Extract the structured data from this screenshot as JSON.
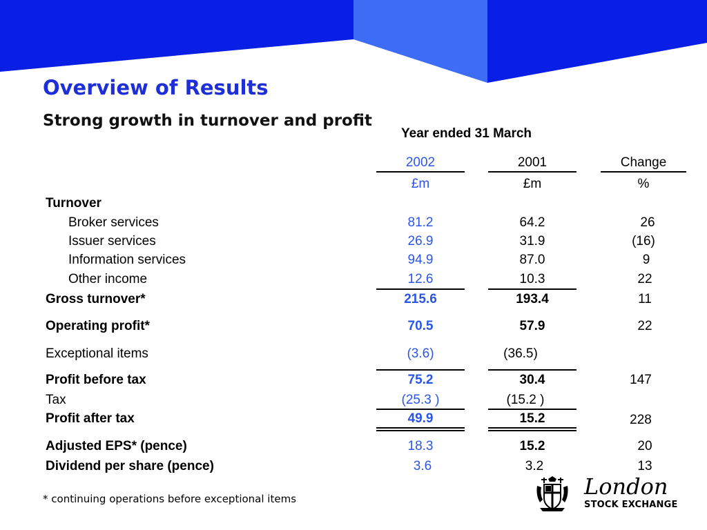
{
  "slide": {
    "title": "Overview of Results",
    "subtitle": "Strong growth in turnover and profit",
    "period": "Year ended 31 March",
    "footnote": "* continuing operations before exceptional items"
  },
  "colors": {
    "banner_dark": "#0a1fe6",
    "banner_light": "#3d6cf5",
    "title": "#1f2fd6",
    "highlight_column": "#2a55e6"
  },
  "table": {
    "columns": [
      {
        "year": "2002",
        "unit": "£m"
      },
      {
        "year": "2001",
        "unit": "£m"
      },
      {
        "year": "Change",
        "unit": "%"
      }
    ],
    "rows": {
      "turnover": {
        "label": "Turnover"
      },
      "broker": {
        "label": "Broker services",
        "y2002": "81.2",
        "y2001": "64.2",
        "change": "26"
      },
      "issuer": {
        "label": "Issuer services",
        "y2002": "26.9",
        "y2001": "31.9",
        "change": "(16)"
      },
      "information": {
        "label": "Information services",
        "y2002": "94.9",
        "y2001": "87.0",
        "change": "9"
      },
      "other": {
        "label": "Other income",
        "y2002": "12.6",
        "y2001": "10.3",
        "change": "22"
      },
      "gross": {
        "label": "Gross turnover*",
        "y2002": "215.6",
        "y2001": "193.4",
        "change": "11"
      },
      "operating": {
        "label": "Operating profit*",
        "y2002": "70.5",
        "y2001": "57.9",
        "change": "22"
      },
      "exceptional": {
        "label": "Exceptional items",
        "y2002": "(3.6)",
        "y2001": "(36.5)"
      },
      "pbt": {
        "label": "Profit before tax",
        "y2002": "75.2",
        "y2001": "30.4",
        "change": "147"
      },
      "tax": {
        "label": "Tax",
        "y2002": "(25.3 )",
        "y2001": "(15.2 )"
      },
      "pat": {
        "label": "Profit after tax",
        "y2002": "49.9",
        "y2001": "15.2",
        "change": "228"
      },
      "eps": {
        "label": "Adjusted EPS* (pence)",
        "y2002": "18.3",
        "y2001": "15.2",
        "change": "20"
      },
      "dividend": {
        "label": "Dividend per share (pence)",
        "y2002": "3.6",
        "y2001": "3.2",
        "change": "13"
      }
    }
  },
  "logo": {
    "name": "London",
    "subname": "STOCK EXCHANGE"
  }
}
